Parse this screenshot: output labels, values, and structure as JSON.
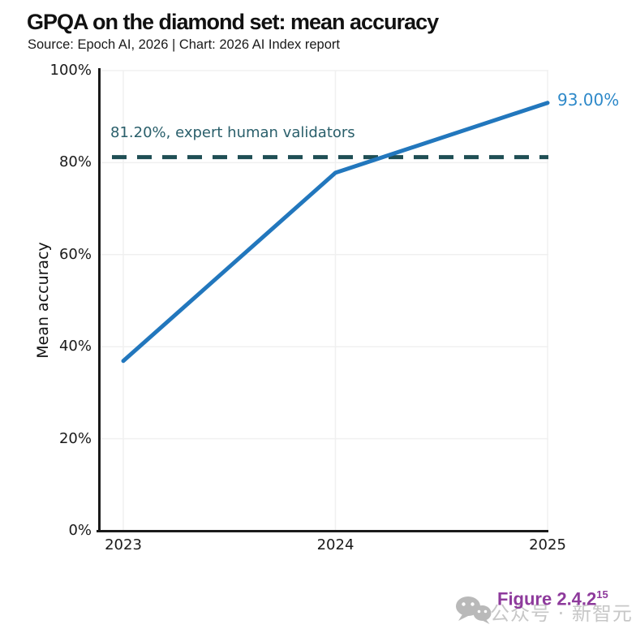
{
  "header": {
    "title": "GPQA on the diamond set: mean accuracy",
    "subtitle": "Source: Epoch AI, 2026 | Chart: 2026 AI Index report"
  },
  "chart_data": {
    "type": "line",
    "title": "GPQA on the diamond set: mean accuracy",
    "source": "Source: Epoch AI, 2026 | Chart: 2026 AI Index report",
    "x": [
      2023,
      2024,
      2025
    ],
    "xtick_labels": [
      "2023",
      "2024",
      "2025"
    ],
    "series": [
      {
        "name": "Mean accuracy",
        "values": [
          36.9,
          77.8,
          93.0
        ]
      }
    ],
    "end_label": "93.00%",
    "ylabel": "Mean accuracy",
    "ylim": [
      0,
      100
    ],
    "yticks": [
      0,
      20,
      40,
      60,
      80,
      100
    ],
    "ytick_labels": [
      "0%",
      "20%",
      "40%",
      "60%",
      "80%",
      "100%"
    ],
    "grid": true,
    "legend": "none",
    "reference_line": {
      "value": 81.2,
      "label": "81.20%, expert human validators",
      "style": "dashed"
    },
    "colors": {
      "line": "#2277bd",
      "end_label": "#2e89c9",
      "reference": "#1f4e54",
      "reference_text": "#2a5f6b",
      "grid": "#f0f0f0",
      "axis": "#1a1a1a",
      "tick_text": "#1a1a1a"
    }
  },
  "footer": {
    "figure_label": "Figure 2.4.2",
    "figure_superscript": "15",
    "figure_color": "#8e3a9c",
    "watermark_icon": "wechat-icon",
    "watermark_text": "公众号 · 新智元",
    "watermark_color": "#c7c7c7",
    "watermark_icon_color": "#b9b9b9"
  }
}
